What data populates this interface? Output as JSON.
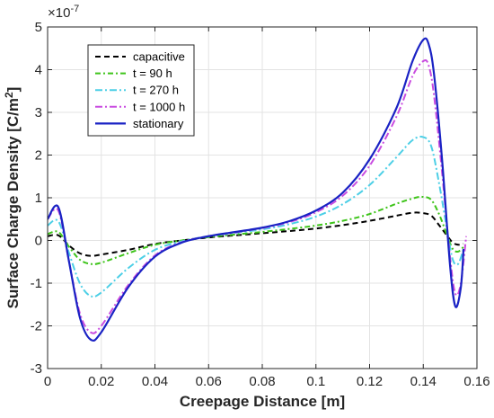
{
  "chart_data": {
    "type": "line",
    "title": "",
    "xlabel": "Creepage Distance [m]",
    "ylabel_main": "Surface Charge Density [C/m",
    "ylabel_sup": "2",
    "ylabel_end": "]",
    "y_multiplier_base": "×10",
    "y_multiplier_exp": "-7",
    "xlim": [
      0,
      0.16
    ],
    "ylim": [
      -3,
      5
    ],
    "xticks": [
      0,
      0.02,
      0.04,
      0.06,
      0.08,
      0.1,
      0.12,
      0.14,
      0.16
    ],
    "xtick_labels": [
      "0",
      "0.02",
      "0.04",
      "0.06",
      "0.08",
      "0.1",
      "0.12",
      "0.14",
      "0.16"
    ],
    "yticks": [
      -3,
      -2,
      -1,
      0,
      1,
      2,
      3,
      4,
      5
    ],
    "ytick_labels": [
      "-3",
      "-2",
      "-1",
      "0",
      "1",
      "2",
      "3",
      "4",
      "5"
    ],
    "grid": true,
    "legend_position": "top-left",
    "series": [
      {
        "name": "capacitive",
        "color": "#000000",
        "dash": "6,4",
        "width": 2,
        "points": [
          [
            0,
            0.1
          ],
          [
            0.004,
            0.12
          ],
          [
            0.008,
            -0.12
          ],
          [
            0.012,
            -0.3
          ],
          [
            0.016,
            -0.36
          ],
          [
            0.02,
            -0.33
          ],
          [
            0.03,
            -0.22
          ],
          [
            0.04,
            -0.08
          ],
          [
            0.05,
            0
          ],
          [
            0.06,
            0.07
          ],
          [
            0.07,
            0.12
          ],
          [
            0.08,
            0.17
          ],
          [
            0.09,
            0.22
          ],
          [
            0.1,
            0.28
          ],
          [
            0.11,
            0.36
          ],
          [
            0.12,
            0.46
          ],
          [
            0.13,
            0.58
          ],
          [
            0.136,
            0.65
          ],
          [
            0.14,
            0.64
          ],
          [
            0.143,
            0.58
          ],
          [
            0.146,
            0.35
          ],
          [
            0.149,
            0.1
          ],
          [
            0.151,
            -0.05
          ],
          [
            0.153,
            -0.1
          ],
          [
            0.155,
            -0.08
          ]
        ]
      },
      {
        "name": "t = 90 h",
        "color": "#3ec41a",
        "dash": "6,3,2,3",
        "width": 2,
        "points": [
          [
            0,
            0.15
          ],
          [
            0.004,
            0.2
          ],
          [
            0.008,
            -0.15
          ],
          [
            0.012,
            -0.45
          ],
          [
            0.016,
            -0.55
          ],
          [
            0.02,
            -0.52
          ],
          [
            0.03,
            -0.3
          ],
          [
            0.04,
            -0.1
          ],
          [
            0.05,
            0
          ],
          [
            0.06,
            0.08
          ],
          [
            0.07,
            0.14
          ],
          [
            0.08,
            0.2
          ],
          [
            0.09,
            0.27
          ],
          [
            0.1,
            0.35
          ],
          [
            0.11,
            0.46
          ],
          [
            0.12,
            0.62
          ],
          [
            0.13,
            0.86
          ],
          [
            0.137,
            1.0
          ],
          [
            0.14,
            1.02
          ],
          [
            0.143,
            0.95
          ],
          [
            0.146,
            0.6
          ],
          [
            0.149,
            0.1
          ],
          [
            0.151,
            -0.2
          ],
          [
            0.153,
            -0.26
          ],
          [
            0.155,
            -0.15
          ]
        ]
      },
      {
        "name": "t = 270 h",
        "color": "#4dcfe6",
        "dash": "8,3,2,3",
        "width": 2,
        "points": [
          [
            0,
            0.35
          ],
          [
            0.004,
            0.45
          ],
          [
            0.008,
            -0.3
          ],
          [
            0.012,
            -1.0
          ],
          [
            0.016,
            -1.3
          ],
          [
            0.02,
            -1.22
          ],
          [
            0.03,
            -0.65
          ],
          [
            0.04,
            -0.22
          ],
          [
            0.05,
            -0.02
          ],
          [
            0.06,
            0.1
          ],
          [
            0.07,
            0.18
          ],
          [
            0.08,
            0.26
          ],
          [
            0.09,
            0.38
          ],
          [
            0.1,
            0.56
          ],
          [
            0.11,
            0.85
          ],
          [
            0.12,
            1.3
          ],
          [
            0.13,
            1.95
          ],
          [
            0.136,
            2.35
          ],
          [
            0.14,
            2.42
          ],
          [
            0.143,
            2.2
          ],
          [
            0.146,
            1.3
          ],
          [
            0.149,
            0.2
          ],
          [
            0.151,
            -0.45
          ],
          [
            0.153,
            -0.55
          ],
          [
            0.155,
            -0.2
          ]
        ]
      },
      {
        "name": "t = 1000 h",
        "color": "#c94ce0",
        "dash": "8,3,2,3",
        "width": 2,
        "points": [
          [
            0,
            0.5
          ],
          [
            0.004,
            0.7
          ],
          [
            0.008,
            -0.5
          ],
          [
            0.012,
            -1.7
          ],
          [
            0.016,
            -2.15
          ],
          [
            0.02,
            -2.0
          ],
          [
            0.03,
            -1.05
          ],
          [
            0.04,
            -0.35
          ],
          [
            0.05,
            -0.04
          ],
          [
            0.06,
            0.1
          ],
          [
            0.07,
            0.19
          ],
          [
            0.08,
            0.29
          ],
          [
            0.09,
            0.43
          ],
          [
            0.1,
            0.66
          ],
          [
            0.11,
            1.05
          ],
          [
            0.12,
            1.75
          ],
          [
            0.13,
            2.9
          ],
          [
            0.136,
            3.85
          ],
          [
            0.14,
            4.2
          ],
          [
            0.142,
            4.1
          ],
          [
            0.144,
            3.4
          ],
          [
            0.147,
            1.6
          ],
          [
            0.15,
            -0.4
          ],
          [
            0.152,
            -1.25
          ],
          [
            0.154,
            -1.0
          ],
          [
            0.156,
            0.1
          ]
        ]
      },
      {
        "name": "stationary",
        "color": "#1a22c4",
        "dash": "",
        "width": 2.2,
        "points": [
          [
            0,
            0.5
          ],
          [
            0.004,
            0.78
          ],
          [
            0.008,
            -0.5
          ],
          [
            0.012,
            -1.8
          ],
          [
            0.016,
            -2.32
          ],
          [
            0.02,
            -2.15
          ],
          [
            0.03,
            -1.1
          ],
          [
            0.04,
            -0.38
          ],
          [
            0.05,
            -0.05
          ],
          [
            0.06,
            0.1
          ],
          [
            0.07,
            0.2
          ],
          [
            0.08,
            0.3
          ],
          [
            0.09,
            0.45
          ],
          [
            0.1,
            0.7
          ],
          [
            0.11,
            1.12
          ],
          [
            0.12,
            1.9
          ],
          [
            0.13,
            3.1
          ],
          [
            0.136,
            4.2
          ],
          [
            0.14,
            4.7
          ],
          [
            0.142,
            4.6
          ],
          [
            0.144,
            3.9
          ],
          [
            0.147,
            1.9
          ],
          [
            0.15,
            -0.6
          ],
          [
            0.152,
            -1.55
          ],
          [
            0.154,
            -1.1
          ],
          [
            0.155,
            -0.2
          ]
        ]
      }
    ]
  }
}
